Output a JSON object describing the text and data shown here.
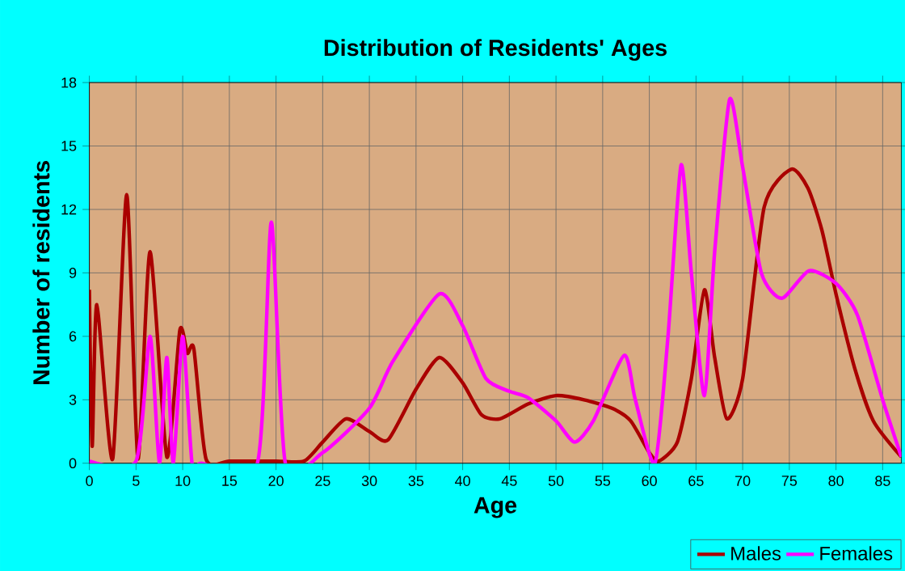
{
  "chart_data": {
    "type": "line",
    "title": "Distribution of Residents' Ages",
    "xlabel": "Age",
    "ylabel": "Number of residents",
    "xlim": [
      0,
      87
    ],
    "ylim": [
      0,
      18
    ],
    "xticks": [
      0,
      5,
      10,
      15,
      20,
      25,
      30,
      35,
      40,
      45,
      50,
      55,
      60,
      65,
      70,
      75,
      80,
      85
    ],
    "yticks": [
      0,
      3,
      6,
      9,
      12,
      15,
      18
    ],
    "grid": true,
    "legend": "bottom right",
    "marker": "none",
    "line_style": "solid",
    "series": [
      {
        "name": "Males",
        "color": "#aa0000",
        "x": [
          0,
          0.3,
          0.8,
          2.5,
          4,
          5.2,
          6.5,
          8.3,
          9.7,
          10.5,
          11.2,
          12.5,
          15,
          20,
          23,
          25,
          27.5,
          30,
          32,
          35,
          37.5,
          40,
          42,
          44,
          47,
          50,
          53,
          56,
          58,
          60,
          61,
          63,
          64.5,
          65.9,
          67,
          68.3,
          70,
          72.3,
          75.2,
          77,
          78.5,
          80,
          82,
          84,
          87
        ],
        "values": [
          8.2,
          0.8,
          7.5,
          0.2,
          12.7,
          0.2,
          10,
          0.3,
          6.3,
          5.2,
          5.4,
          0.2,
          0.1,
          0.1,
          0.1,
          1,
          2.1,
          1.5,
          1.1,
          3.5,
          5,
          3.8,
          2.3,
          2.1,
          2.8,
          3.2,
          3,
          2.6,
          2,
          0.5,
          0.1,
          1,
          4,
          8.2,
          5,
          2.1,
          4,
          12.1,
          13.9,
          13,
          11,
          8,
          4.5,
          2,
          0.3
        ]
      },
      {
        "name": "Females",
        "color": "#ff00ff",
        "x": [
          0,
          5,
          6.5,
          7.5,
          8.3,
          9,
          10,
          11,
          12,
          18,
          19.5,
          21,
          25,
          30,
          32.5,
          37.5,
          40,
          42.5,
          45,
          47,
          50,
          52,
          54,
          57.3,
          58.5,
          60.6,
          62,
          63.4,
          64.5,
          65.9,
          67,
          68.6,
          70,
          72,
          74.2,
          77.1,
          80,
          82.3,
          85,
          87
        ],
        "values": [
          0.1,
          0.1,
          6,
          0,
          5,
          0,
          6,
          0,
          0,
          0,
          11.4,
          0,
          0.5,
          2.6,
          4.8,
          8,
          6.5,
          4,
          3.4,
          3.1,
          2,
          1,
          2,
          5.1,
          3,
          0,
          6,
          14.1,
          9,
          3.2,
          10,
          17.2,
          14,
          9,
          7.8,
          9.1,
          8.5,
          7,
          3,
          0.3
        ]
      }
    ]
  }
}
